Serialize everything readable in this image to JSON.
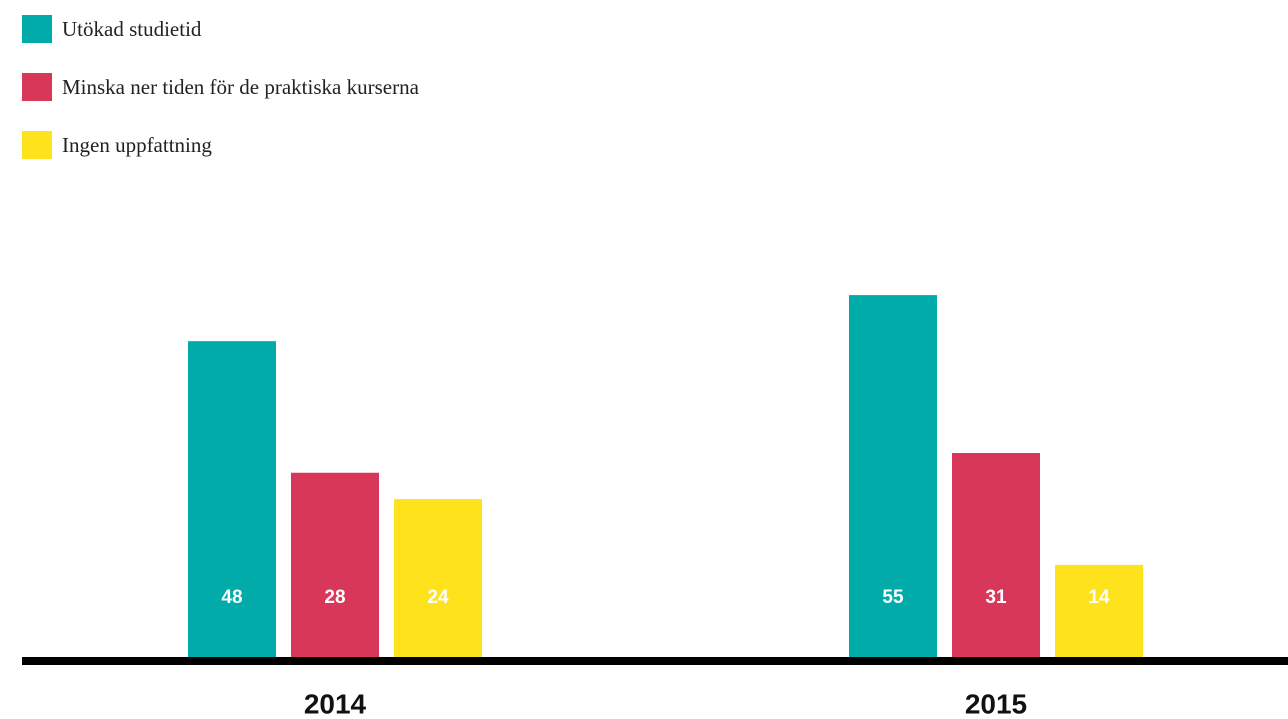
{
  "chart_data": {
    "type": "bar",
    "categories": [
      "2014",
      "2015"
    ],
    "series": [
      {
        "name": "Utökad studietid",
        "color": "#00aba9",
        "values": [
          48,
          55
        ]
      },
      {
        "name": "Minska ner tiden för de praktiska kurserna",
        "color": "#d9375a",
        "values": [
          28,
          31
        ]
      },
      {
        "name": "Ingen uppfattning",
        "color": "#fde21c",
        "values": [
          24,
          14
        ]
      }
    ]
  }
}
